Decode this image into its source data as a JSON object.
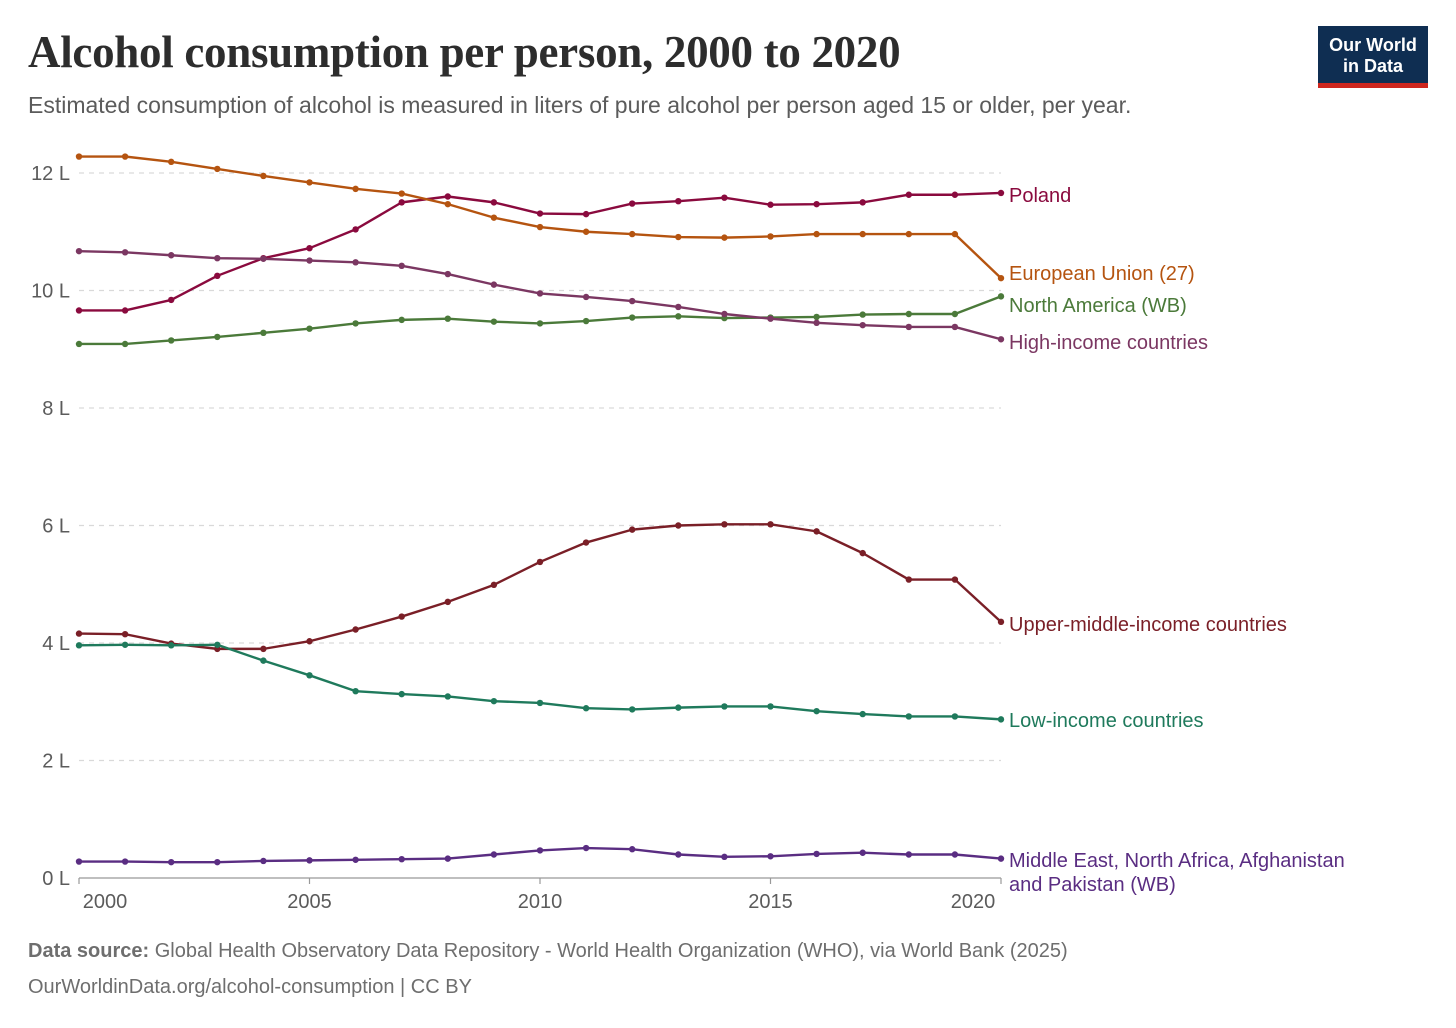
{
  "header": {
    "title": "Alcohol consumption per person, 2000 to 2020",
    "subtitle": "Estimated consumption of alcohol is measured in liters of pure alcohol per person aged 15 or older, per year.",
    "logo_line1": "Our World",
    "logo_line2": "in Data"
  },
  "footer": {
    "source_label": "Data source:",
    "source_text": "Global Health Observatory Data Repository - World Health Organization (WHO), via World Bank (2025)",
    "url": "OurWorldinData.org/alcohol-consumption",
    "license": "| CC BY"
  },
  "chart_data": {
    "type": "line",
    "title": "Alcohol consumption per person, 2000 to 2020",
    "x": [
      2000,
      2001,
      2002,
      2003,
      2004,
      2005,
      2006,
      2007,
      2008,
      2009,
      2010,
      2011,
      2012,
      2013,
      2014,
      2015,
      2016,
      2017,
      2018,
      2019,
      2020
    ],
    "xlim": [
      2000,
      2020
    ],
    "ylim": [
      0,
      12
    ],
    "x_ticks": [
      2000,
      2005,
      2010,
      2015,
      2020
    ],
    "x_tick_labels": [
      "2000",
      "2005",
      "2010",
      "2015",
      "2020"
    ],
    "y_ticks": [
      0,
      2,
      4,
      6,
      8,
      10,
      12
    ],
    "y_tick_labels": [
      "0 L",
      "2 L",
      "4 L",
      "6 L",
      "8 L",
      "10 L",
      "12 L"
    ],
    "grid": "horizontal dashed",
    "legend": "right, inline labels at line ends",
    "series": [
      {
        "name": "Poland",
        "color": "#8a0a3e",
        "values": [
          9.66,
          9.66,
          9.84,
          10.25,
          10.55,
          10.72,
          11.04,
          11.5,
          11.6,
          11.5,
          11.31,
          11.3,
          11.48,
          11.52,
          11.58,
          11.46,
          11.47,
          11.5,
          11.63,
          11.63,
          11.66
        ]
      },
      {
        "name": "European Union (27)",
        "color": "#b55410",
        "values": [
          12.28,
          12.28,
          12.19,
          12.07,
          11.95,
          11.84,
          11.73,
          11.65,
          11.47,
          11.24,
          11.08,
          11.0,
          10.96,
          10.91,
          10.9,
          10.92,
          10.96,
          10.96,
          10.96,
          10.96,
          10.21
        ]
      },
      {
        "name": "North America (WB)",
        "color": "#4b7a3a",
        "values": [
          9.09,
          9.09,
          9.15,
          9.21,
          9.28,
          9.35,
          9.44,
          9.5,
          9.52,
          9.47,
          9.44,
          9.48,
          9.54,
          9.56,
          9.53,
          9.54,
          9.55,
          9.59,
          9.6,
          9.6,
          9.9
        ]
      },
      {
        "name": "High-income countries",
        "color": "#7b3762",
        "values": [
          10.67,
          10.65,
          10.6,
          10.55,
          10.54,
          10.51,
          10.48,
          10.42,
          10.28,
          10.1,
          9.95,
          9.89,
          9.82,
          9.72,
          9.6,
          9.52,
          9.45,
          9.41,
          9.38,
          9.38,
          9.17
        ]
      },
      {
        "name": "Upper-middle-income countries",
        "color": "#7a1f27",
        "values": [
          4.16,
          4.15,
          3.99,
          3.9,
          3.9,
          4.03,
          4.23,
          4.45,
          4.7,
          4.99,
          5.38,
          5.71,
          5.93,
          6.0,
          6.02,
          6.02,
          5.9,
          5.53,
          5.08,
          5.08,
          4.36
        ]
      },
      {
        "name": "Low-income countries",
        "color": "#1f7a5c",
        "values": [
          3.96,
          3.97,
          3.96,
          3.97,
          3.7,
          3.45,
          3.18,
          3.13,
          3.09,
          3.01,
          2.98,
          2.89,
          2.87,
          2.9,
          2.92,
          2.92,
          2.84,
          2.79,
          2.75,
          2.75,
          2.7
        ]
      },
      {
        "name": "Middle East, North Africa, Afghanistan and Pakistan (WB)",
        "label_lines": [
          "Middle East, North Africa, Afghanistan",
          "and Pakistan (WB)"
        ],
        "color": "#5a2d82",
        "values": [
          0.28,
          0.28,
          0.27,
          0.27,
          0.29,
          0.3,
          0.31,
          0.32,
          0.33,
          0.4,
          0.47,
          0.51,
          0.49,
          0.4,
          0.36,
          0.37,
          0.41,
          0.43,
          0.4,
          0.4,
          0.33
        ]
      }
    ]
  }
}
